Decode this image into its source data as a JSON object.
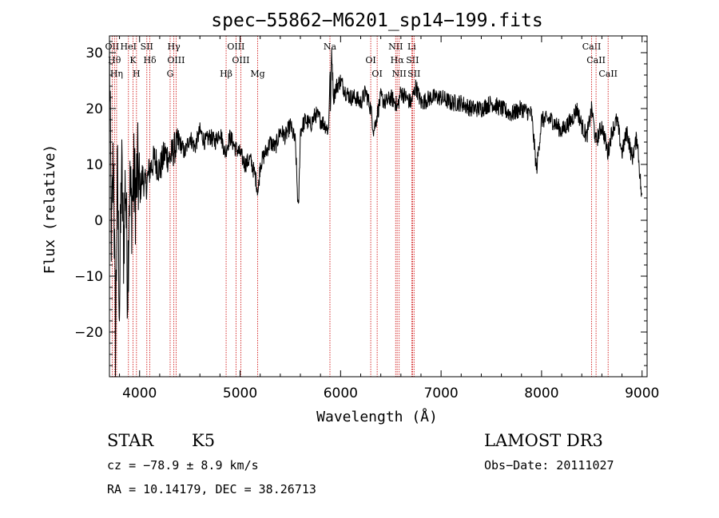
{
  "chart_data": {
    "type": "line",
    "title": "spec−55862−M6201_sp14−199.fits",
    "xlabel": "Wavelength (Å)",
    "ylabel": "Flux (relative)",
    "xlim": [
      3700,
      9050
    ],
    "ylim": [
      -28,
      33
    ],
    "x_ticks": [
      4000,
      5000,
      6000,
      7000,
      8000,
      9000
    ],
    "y_ticks": [
      -20,
      -10,
      0,
      10,
      20,
      30
    ],
    "x_tick_labels": [
      "4000",
      "5000",
      "6000",
      "7000",
      "8000",
      "9000"
    ],
    "y_tick_labels": [
      "−20",
      "−10",
      "0",
      "10",
      "20",
      "30"
    ],
    "series": [
      {
        "x": [
          3700,
          3720,
          3740,
          3760,
          3780,
          3800,
          3820,
          3840,
          3860,
          3880,
          3900,
          3920,
          3940,
          3960,
          3980,
          4000,
          4030,
          4060,
          4100,
          4150,
          4200,
          4250,
          4300,
          4350,
          4400,
          4450,
          4500,
          4550,
          4600,
          4650,
          4700,
          4750,
          4800,
          4850,
          4900,
          4950,
          5000,
          5050,
          5100,
          5150,
          5180,
          5200,
          5250,
          5300,
          5350,
          5400,
          5450,
          5500,
          5550,
          5580,
          5600,
          5650,
          5700,
          5750,
          5800,
          5850,
          5880,
          5895,
          5900,
          5910,
          5930,
          5960,
          6000,
          6050,
          6100,
          6150,
          6200,
          6250,
          6300,
          6330,
          6400,
          6450,
          6500,
          6550,
          6563,
          6600,
          6650,
          6700,
          6750,
          6800,
          6900,
          7000,
          7100,
          7200,
          7300,
          7400,
          7500,
          7600,
          7700,
          7800,
          7900,
          7950,
          8000,
          8100,
          8200,
          8300,
          8350,
          8400,
          8450,
          8500,
          8540,
          8600,
          8660,
          8700,
          8750,
          8800,
          8850,
          8900,
          8950,
          9000
        ],
        "y": [
          30,
          -5,
          12,
          -22,
          8,
          -16,
          10,
          -5,
          8,
          -12,
          6,
          2,
          8,
          4,
          9,
          5,
          8,
          6,
          9,
          11,
          9,
          12,
          11,
          13,
          14,
          12,
          15,
          13,
          16,
          14,
          15,
          14,
          16,
          12,
          15,
          13,
          12,
          10,
          11,
          8,
          5,
          10,
          12,
          14,
          13,
          16,
          15,
          17,
          14,
          1,
          16,
          18,
          17,
          19,
          18,
          17,
          16,
          27,
          19,
          31,
          22,
          24,
          25,
          23,
          22,
          22,
          21,
          23,
          20,
          16,
          22,
          21,
          22,
          21,
          20,
          23,
          22,
          21,
          24,
          21,
          22,
          22,
          21,
          21,
          20,
          20,
          21,
          20,
          19,
          20,
          19,
          9,
          18,
          18,
          16,
          18,
          20,
          17,
          15,
          20,
          14,
          17,
          12,
          16,
          18,
          12,
          16,
          11,
          15,
          3
        ]
      }
    ],
    "line_marks": [
      {
        "x": 3727,
        "label": "OII"
      },
      {
        "x": 3750,
        "label": "Hθ"
      },
      {
        "x": 3771,
        "label": "Hη"
      },
      {
        "x": 3889,
        "label": "HeI"
      },
      {
        "x": 3934,
        "label": "K"
      },
      {
        "x": 3969,
        "label": "H"
      },
      {
        "x": 4072,
        "label": "SII"
      },
      {
        "x": 4102,
        "label": "Hδ"
      },
      {
        "x": 4304,
        "label": "G"
      },
      {
        "x": 4341,
        "label": "Hγ"
      },
      {
        "x": 4363,
        "label": "OIII"
      },
      {
        "x": 4861,
        "label": "Hβ"
      },
      {
        "x": 4959,
        "label": "OIII"
      },
      {
        "x": 5007,
        "label": "OIII"
      },
      {
        "x": 5175,
        "label": "Mg"
      },
      {
        "x": 5894,
        "label": "Na"
      },
      {
        "x": 6300,
        "label": "OI"
      },
      {
        "x": 6364,
        "label": "OI"
      },
      {
        "x": 6548,
        "label": "NII"
      },
      {
        "x": 6563,
        "label": "Hα"
      },
      {
        "x": 6583,
        "label": "NII"
      },
      {
        "x": 6708,
        "label": "Li"
      },
      {
        "x": 6716,
        "label": "SII"
      },
      {
        "x": 6731,
        "label": "SII"
      },
      {
        "x": 8498,
        "label": "CaII"
      },
      {
        "x": 8542,
        "label": "CaII"
      },
      {
        "x": 8662,
        "label": "CaII"
      }
    ]
  },
  "info": {
    "object_class": "STAR",
    "subclass": "K5",
    "survey": "LAMOST DR3",
    "cz": "cz = −78.9 ± 8.9 km/s",
    "obs_date": "Obs−Date: 20111027",
    "radec": "RA =  10.14179, DEC =  38.26713"
  }
}
